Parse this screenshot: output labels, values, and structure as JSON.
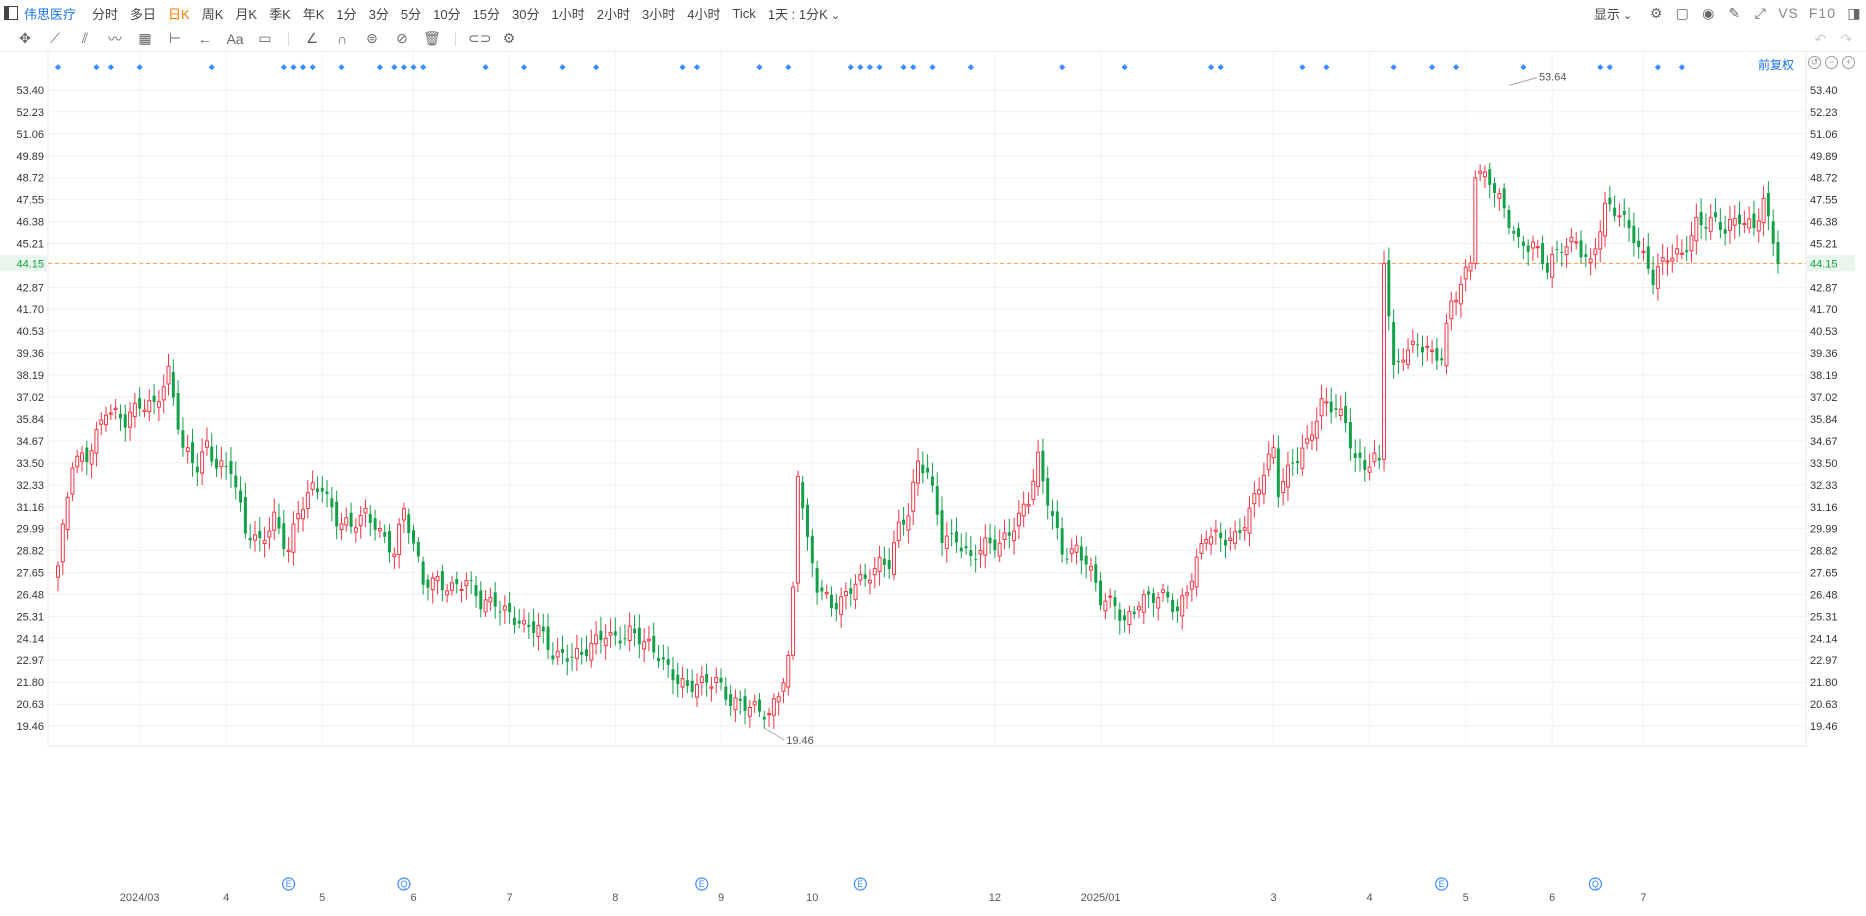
{
  "topbar": {
    "stock_name": "伟思医疗",
    "periods": [
      "分时",
      "多日",
      "日K",
      "周K",
      "月K",
      "季K",
      "年K",
      "1分",
      "3分",
      "5分",
      "10分",
      "15分",
      "30分",
      "1小时",
      "2小时",
      "3小时",
      "4小时",
      "Tick",
      "1天 : 1分K"
    ],
    "active_period": "日K",
    "display_label": "显示",
    "vs_label": "VS",
    "f10_label": "F10"
  },
  "fuquan_label": "前复权",
  "colors": {
    "up": "#f23645",
    "down": "#12a048",
    "grid": "#f0f1f4",
    "current_line": "#ff9a4a",
    "event": "#3b8cff"
  },
  "chart_data": {
    "type": "candlestick",
    "title": "",
    "ylim": [
      19.46,
      53.4
    ],
    "yticks": [
      "53.40",
      "52.23",
      "51.06",
      "49.89",
      "48.72",
      "47.55",
      "46.38",
      "45.21",
      "44.15",
      "42.87",
      "41.70",
      "40.53",
      "39.36",
      "38.19",
      "37.02",
      "35.84",
      "34.67",
      "33.50",
      "32.33",
      "31.16",
      "29.99",
      "28.82",
      "27.65",
      "26.48",
      "25.31",
      "24.14",
      "22.97",
      "21.80",
      "20.63",
      "19.46"
    ],
    "xticks": [
      {
        "i": 17,
        "label": "2024/03"
      },
      {
        "i": 35,
        "label": "4"
      },
      {
        "i": 55,
        "label": "5"
      },
      {
        "i": 74,
        "label": "6"
      },
      {
        "i": 94,
        "label": "7"
      },
      {
        "i": 116,
        "label": "8"
      },
      {
        "i": 138,
        "label": "9"
      },
      {
        "i": 157,
        "label": "10"
      },
      {
        "i": 195,
        "label": "12"
      },
      {
        "i": 217,
        "label": "2025/01"
      },
      {
        "i": 253,
        "label": "3"
      },
      {
        "i": 273,
        "label": "4"
      },
      {
        "i": 293,
        "label": "5"
      },
      {
        "i": 311,
        "label": "6"
      },
      {
        "i": 330,
        "label": "7"
      }
    ],
    "current_price": "44.15",
    "max_label": "53.64",
    "min_label": "19.46",
    "events": [
      {
        "i": 48,
        "label": "E"
      },
      {
        "i": 72,
        "label": "Q"
      },
      {
        "i": 134,
        "label": "E"
      },
      {
        "i": 167,
        "label": "E"
      },
      {
        "i": 288,
        "label": "E"
      },
      {
        "i": 320,
        "label": "Q"
      }
    ],
    "top_marker_dates": [
      0,
      8,
      11,
      17,
      32,
      47,
      49,
      51,
      53,
      59,
      67,
      70,
      72,
      74,
      76,
      89,
      97,
      105,
      112,
      130,
      133,
      146,
      152,
      165,
      167,
      169,
      171,
      176,
      178,
      182,
      190,
      209,
      222,
      240,
      242,
      259,
      264,
      278,
      286,
      291,
      305,
      321,
      323,
      333,
      338
    ],
    "keypoints": [
      [
        0,
        28.0
      ],
      [
        3,
        33.3
      ],
      [
        6,
        33.8
      ],
      [
        10,
        36.6
      ],
      [
        14,
        35.5
      ],
      [
        17,
        36.5
      ],
      [
        20,
        36.8
      ],
      [
        23,
        38.4
      ],
      [
        26,
        34.0
      ],
      [
        29,
        33.2
      ],
      [
        31,
        34.6
      ],
      [
        33,
        33.6
      ],
      [
        36,
        33.2
      ],
      [
        39,
        29.6
      ],
      [
        42,
        29.3
      ],
      [
        45,
        30.8
      ],
      [
        47,
        29.3
      ],
      [
        48,
        28.8
      ],
      [
        50,
        30.6
      ],
      [
        53,
        32.1
      ],
      [
        55,
        32.4
      ],
      [
        58,
        30.6
      ],
      [
        61,
        29.9
      ],
      [
        64,
        30.6
      ],
      [
        66,
        30.3
      ],
      [
        68,
        29.6
      ],
      [
        70,
        28.9
      ],
      [
        72,
        30.9
      ],
      [
        74,
        28.9
      ],
      [
        76,
        27.0
      ],
      [
        79,
        27.4
      ],
      [
        82,
        26.9
      ],
      [
        85,
        27.0
      ],
      [
        88,
        25.9
      ],
      [
        91,
        26.3
      ],
      [
        94,
        25.5
      ],
      [
        97,
        24.5
      ],
      [
        100,
        24.6
      ],
      [
        103,
        23.5
      ],
      [
        106,
        23.3
      ],
      [
        109,
        23.0
      ],
      [
        112,
        23.9
      ],
      [
        114,
        24.6
      ],
      [
        116,
        24.3
      ],
      [
        119,
        24.4
      ],
      [
        122,
        23.7
      ],
      [
        125,
        23.3
      ],
      [
        128,
        22.4
      ],
      [
        131,
        21.4
      ],
      [
        134,
        21.5
      ],
      [
        137,
        22.0
      ],
      [
        140,
        21.0
      ],
      [
        143,
        20.5
      ],
      [
        146,
        20.0
      ],
      [
        148,
        20.0
      ],
      [
        150,
        21.4
      ],
      [
        152,
        23.2
      ],
      [
        153,
        26.8
      ],
      [
        154,
        33.1
      ],
      [
        155,
        31.1
      ],
      [
        156,
        29.0
      ],
      [
        158,
        26.7
      ],
      [
        161,
        26.0
      ],
      [
        164,
        26.6
      ],
      [
        166,
        27.2
      ],
      [
        168,
        27.0
      ],
      [
        171,
        28.0
      ],
      [
        173,
        28.3
      ],
      [
        175,
        30.3
      ],
      [
        177,
        31.0
      ],
      [
        179,
        33.3
      ],
      [
        181,
        32.8
      ],
      [
        184,
        29.6
      ],
      [
        187,
        29.7
      ],
      [
        190,
        28.3
      ],
      [
        193,
        28.9
      ],
      [
        196,
        29.2
      ],
      [
        199,
        30.4
      ],
      [
        202,
        31.5
      ],
      [
        204,
        33.5
      ],
      [
        205,
        32.2
      ],
      [
        207,
        30.6
      ],
      [
        209,
        28.9
      ],
      [
        212,
        29.0
      ],
      [
        214,
        28.2
      ],
      [
        217,
        26.0
      ],
      [
        220,
        26.0
      ],
      [
        222,
        25.2
      ],
      [
        225,
        26.1
      ],
      [
        228,
        26.1
      ],
      [
        231,
        26.3
      ],
      [
        233,
        25.7
      ],
      [
        236,
        27.6
      ],
      [
        239,
        29.5
      ],
      [
        242,
        29.3
      ],
      [
        245,
        29.7
      ],
      [
        248,
        31.0
      ],
      [
        251,
        32.8
      ],
      [
        253,
        34.0
      ],
      [
        254,
        31.9
      ],
      [
        257,
        33.8
      ],
      [
        260,
        34.6
      ],
      [
        263,
        36.4
      ],
      [
        266,
        36.3
      ],
      [
        268,
        35.8
      ],
      [
        270,
        33.9
      ],
      [
        272,
        33.4
      ],
      [
        274,
        33.6
      ],
      [
        275,
        33.2
      ],
      [
        276,
        44.2
      ],
      [
        278,
        38.3
      ],
      [
        280,
        39.5
      ],
      [
        283,
        40.1
      ],
      [
        286,
        39.1
      ],
      [
        288,
        38.9
      ],
      [
        290,
        42.0
      ],
      [
        292,
        43.2
      ],
      [
        294,
        44.5
      ],
      [
        295,
        49.2
      ],
      [
        298,
        48.4
      ],
      [
        301,
        46.8
      ],
      [
        304,
        45.4
      ],
      [
        307,
        45.3
      ],
      [
        310,
        43.7
      ],
      [
        313,
        44.9
      ],
      [
        316,
        45.5
      ],
      [
        319,
        44.2
      ],
      [
        322,
        46.9
      ],
      [
        325,
        46.7
      ],
      [
        328,
        45.8
      ],
      [
        331,
        44.1
      ],
      [
        332,
        43.3
      ],
      [
        335,
        44.3
      ],
      [
        338,
        44.6
      ],
      [
        341,
        46.5
      ],
      [
        344,
        46.4
      ],
      [
        347,
        45.7
      ],
      [
        350,
        46.6
      ],
      [
        353,
        46.3
      ],
      [
        355,
        47.6
      ],
      [
        356,
        46.3
      ],
      [
        358,
        44.15
      ]
    ]
  }
}
